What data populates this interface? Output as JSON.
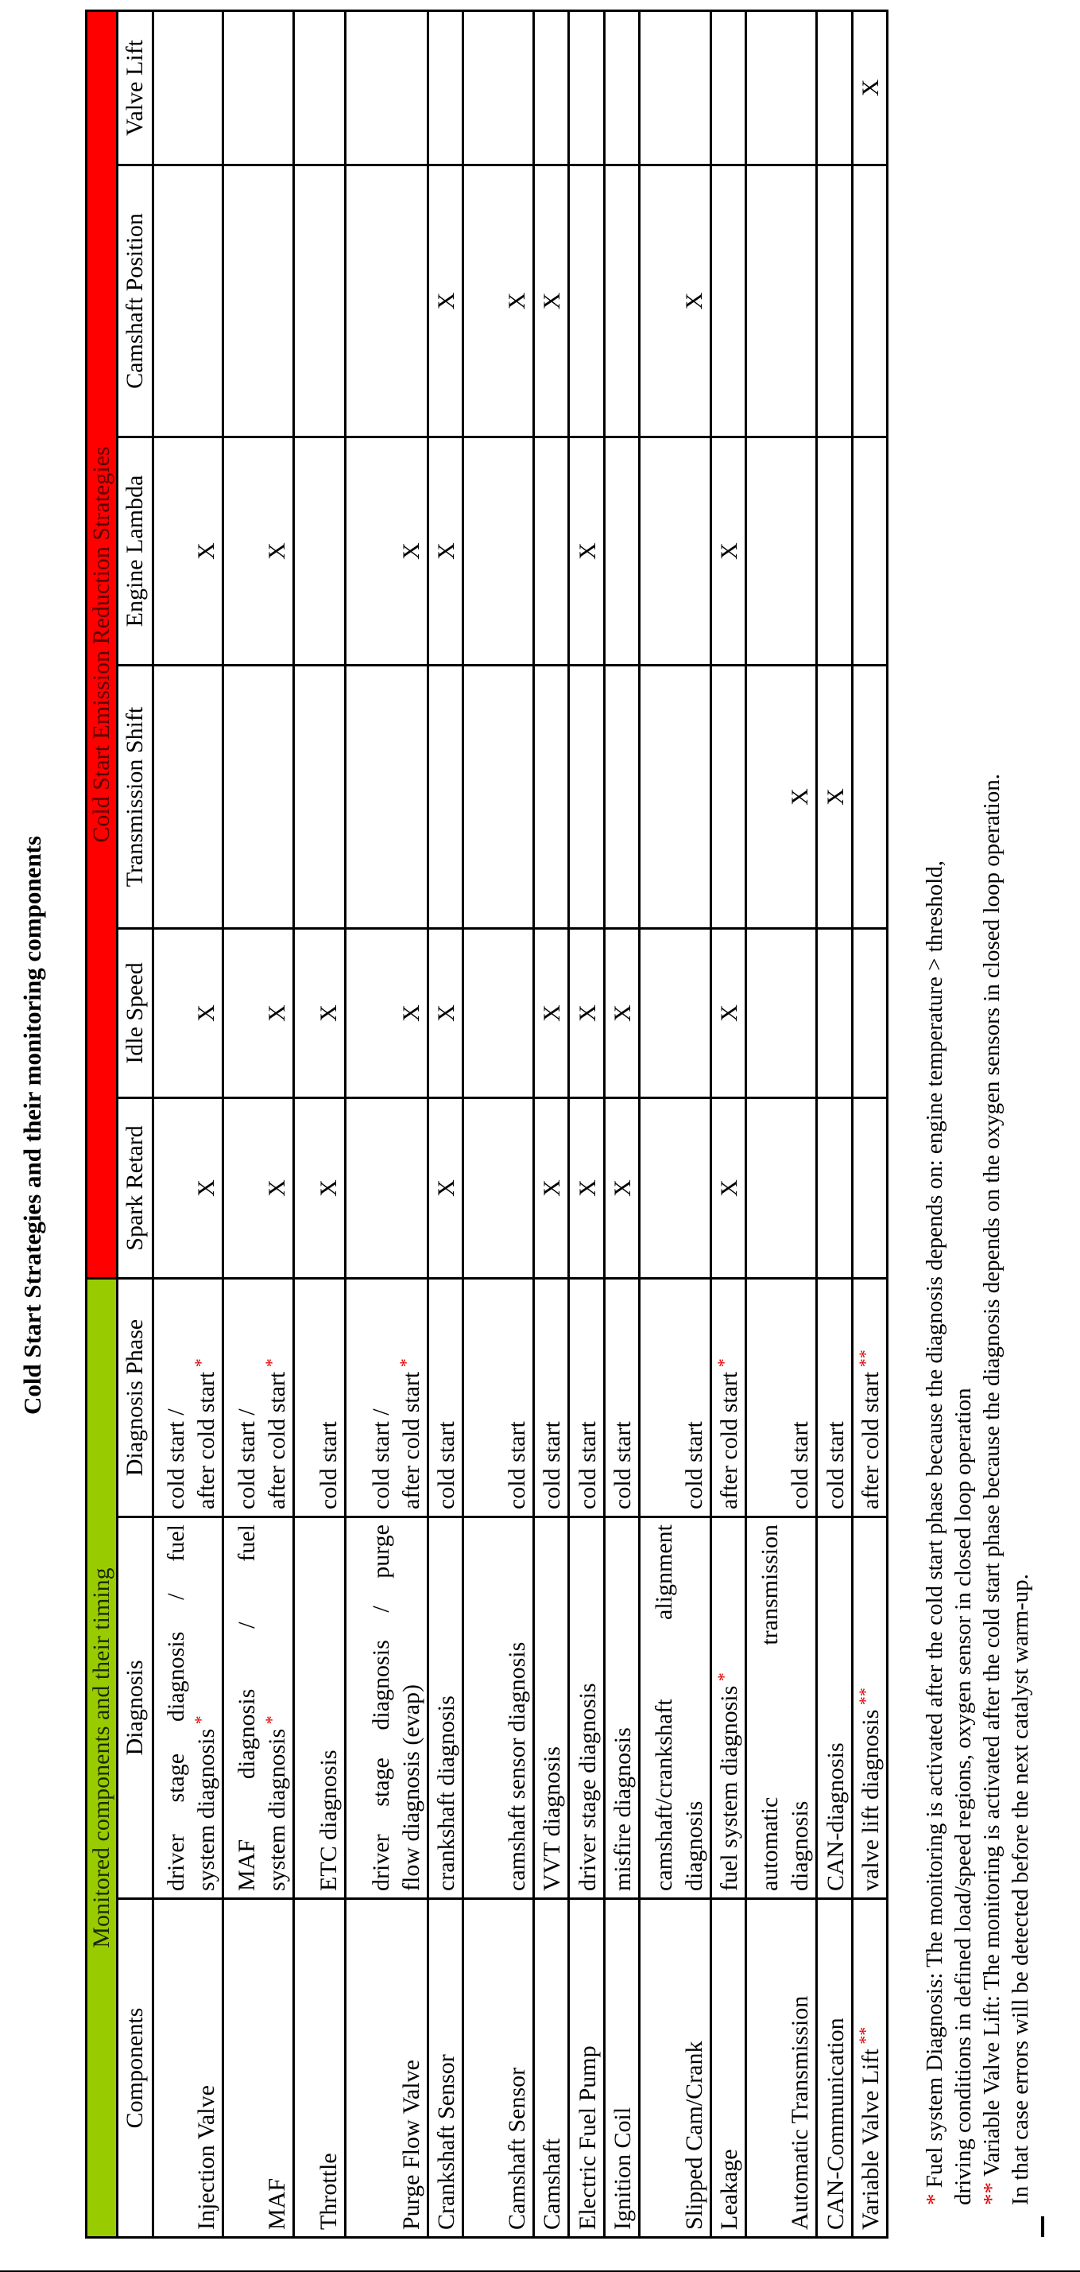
{
  "title": "Cold Start Strategies and their monitoring components",
  "colors": {
    "monitored_header": "#99cc00",
    "strategies_header": "#ff0000",
    "footnote_marker": "#e00000"
  },
  "group_headers": {
    "monitored": "Monitored components and their timing",
    "strategies": "Cold Start Emission Reduction Strategies"
  },
  "columns": [
    "Components",
    "Diagnosis",
    "Diagnosis Phase",
    "Spark Retard",
    "Idle Speed",
    "Transmission Shift",
    "Engine Lambda",
    "Camshaft Position",
    "Valve Lift"
  ],
  "mark_symbol": "X",
  "rows": [
    {
      "component": "Injection Valve",
      "component_note": "",
      "diagnosis": [
        "driver stage diagnosis /  fuel",
        "system diagnosis"
      ],
      "diagnosis_note": "*",
      "phase": [
        "cold start /",
        "after cold start"
      ],
      "phase_note": "*",
      "marks": [
        true,
        true,
        false,
        true,
        false,
        false
      ]
    },
    {
      "component": "MAF",
      "component_note": "",
      "diagnosis": [
        "MAF diagnosis /     fuel",
        "system diagnosis"
      ],
      "diagnosis_note": "*",
      "phase": [
        "cold start /",
        "after cold start"
      ],
      "phase_note": "*",
      "marks": [
        true,
        true,
        false,
        true,
        false,
        false
      ]
    },
    {
      "component": "Throttle",
      "component_note": "",
      "diagnosis": [
        "ETC diagnosis"
      ],
      "diagnosis_note": "",
      "phase": [
        "cold start"
      ],
      "phase_note": "",
      "marks": [
        true,
        true,
        false,
        false,
        false,
        false
      ]
    },
    {
      "component": "Purge Flow Valve",
      "component_note": "",
      "diagnosis": [
        "driver stage diagnosis /  purge",
        "flow diagnosis (evap)"
      ],
      "diagnosis_note": "",
      "phase": [
        "cold start /",
        "after cold start"
      ],
      "phase_note": "*",
      "marks": [
        false,
        true,
        false,
        true,
        false,
        false
      ]
    },
    {
      "component": "Crankshaft Sensor",
      "component_note": "",
      "diagnosis": [
        "crankshaft diagnosis"
      ],
      "diagnosis_note": "",
      "phase": [
        "cold start"
      ],
      "phase_note": "",
      "marks": [
        true,
        true,
        false,
        true,
        true,
        false
      ]
    },
    {
      "component": "Camshaft Sensor",
      "component_note": "",
      "diagnosis": [
        "camshaft sensor diagnosis"
      ],
      "diagnosis_note": "",
      "phase": [
        "cold start"
      ],
      "phase_note": "",
      "marks": [
        false,
        false,
        false,
        false,
        true,
        false
      ]
    },
    {
      "component": "Camshaft",
      "component_note": "",
      "diagnosis": [
        "VVT diagnosis"
      ],
      "diagnosis_note": "",
      "phase": [
        "cold start"
      ],
      "phase_note": "",
      "marks": [
        true,
        true,
        false,
        false,
        true,
        false
      ]
    },
    {
      "component": "Electric Fuel Pump",
      "component_note": "",
      "diagnosis": [
        "driver stage diagnosis"
      ],
      "diagnosis_note": "",
      "phase": [
        "cold start"
      ],
      "phase_note": "",
      "marks": [
        true,
        true,
        false,
        true,
        false,
        false
      ]
    },
    {
      "component": "Ignition Coil",
      "component_note": "",
      "diagnosis": [
        "misfire diagnosis"
      ],
      "diagnosis_note": "",
      "phase": [
        "cold start"
      ],
      "phase_note": "",
      "marks": [
        true,
        true,
        false,
        false,
        false,
        false
      ]
    },
    {
      "component": "Slipped Cam/Crank",
      "component_note": "",
      "diagnosis": [
        "camshaft/crankshaft alignment",
        "diagnosis"
      ],
      "diagnosis_note": "",
      "phase": [
        "cold start"
      ],
      "phase_note": "",
      "marks": [
        false,
        false,
        false,
        false,
        true,
        false
      ]
    },
    {
      "component": "Leakage",
      "component_note": "",
      "diagnosis": [
        "fuel system diagnosis"
      ],
      "diagnosis_note": "*",
      "phase": [
        "after cold start"
      ],
      "phase_note": "*",
      "marks": [
        true,
        true,
        false,
        true,
        false,
        false
      ]
    },
    {
      "component": "Automatic Transmission",
      "component_note": "",
      "diagnosis": [
        "automatic transmission",
        "diagnosis"
      ],
      "diagnosis_note": "",
      "phase": [
        "cold start"
      ],
      "phase_note": "",
      "marks": [
        false,
        false,
        true,
        false,
        false,
        false
      ]
    },
    {
      "component": "CAN-Communication",
      "component_note": "",
      "diagnosis": [
        "CAN-diagnosis"
      ],
      "diagnosis_note": "",
      "phase": [
        "cold start"
      ],
      "phase_note": "",
      "marks": [
        false,
        false,
        true,
        false,
        false,
        false
      ]
    },
    {
      "component": "Variable Valve Lift",
      "component_note": "**",
      "diagnosis": [
        "valve lift diagnosis"
      ],
      "diagnosis_note": "**",
      "phase": [
        "after cold start"
      ],
      "phase_note": "**",
      "marks": [
        false,
        false,
        false,
        false,
        false,
        true
      ]
    }
  ],
  "footnotes": [
    {
      "marker": "*",
      "text": " Fuel system Diagnosis: The monitoring is activated after the cold start phase because the diagnosis depends on:  engine temperature > threshold,"
    },
    {
      "marker": "",
      "text": "driving conditions in defined load/speed regions, oxygen sensor in closed loop operation"
    },
    {
      "marker": "**",
      "text": " Variable Valve Lift: The monitoring is activated after the cold start phase because the diagnosis depends on the oxygen sensors in closed loop operation."
    },
    {
      "marker": "",
      "text": "In that case errors  will be detected before the next catalyst warm-up."
    }
  ]
}
